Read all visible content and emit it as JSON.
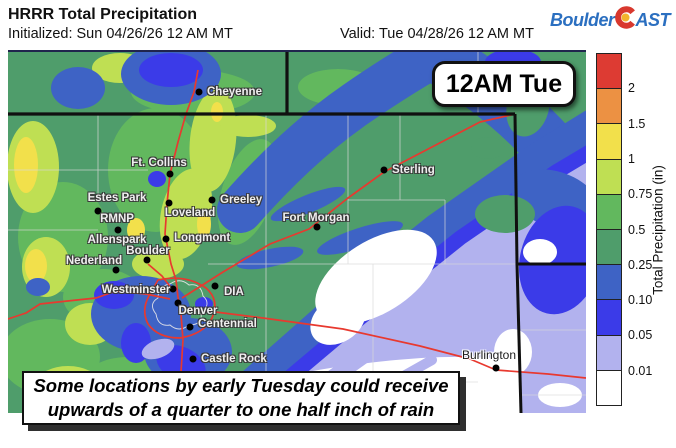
{
  "header": {
    "title": "HRRR Total Precipitation",
    "initialized": "Initialized: Sun 04/26/26 12 AM MT",
    "valid": "Valid: Tue 04/28/26 12 AM MT"
  },
  "logo": {
    "part1": "Boulder",
    "part2": "AST",
    "blue": "#2b6fc0",
    "c_red": "#d8382e",
    "c_yellow": "#f2b32d"
  },
  "overlay": {
    "time_label": "12AM Tue"
  },
  "caption": {
    "line1": "Some locations by early Tuesday could receive",
    "line2": "upwards of a quarter to one half inch of rain"
  },
  "colorbar": {
    "title": "Total Precipitation (in)",
    "tick_labels": [
      "2",
      "1.5",
      "1",
      "0.75",
      "0.5",
      "0.25",
      "0.10",
      "0.05",
      "0.01"
    ],
    "segment_colors": [
      "#DD3B33",
      "#EC9143",
      "#F2E04B",
      "#BFDF53",
      "#62B85E",
      "#4F9D6B",
      "#3E63C5",
      "#3B3BE8",
      "#B2B2EE",
      "#FFFFFF"
    ],
    "units": "in"
  },
  "map": {
    "road_color": "#E8392F",
    "border_color": "#101010",
    "cities": [
      {
        "name": "Cheyenne",
        "dot": [
          199,
          92
        ],
        "label": [
          207,
          92
        ],
        "anchor": "left",
        "theme": "light"
      },
      {
        "name": "Ft. Collins",
        "dot": [
          170,
          174
        ],
        "label": [
          159,
          163
        ],
        "anchor": "center",
        "theme": "light"
      },
      {
        "name": "Estes Park",
        "dot": [
          98,
          211
        ],
        "label": [
          117,
          198
        ],
        "anchor": "center",
        "theme": "light"
      },
      {
        "name": "RMNP",
        "dot": null,
        "label": [
          117,
          219
        ],
        "anchor": "center",
        "theme": "light"
      },
      {
        "name": "Allenspark",
        "dot": [
          118,
          230
        ],
        "label": [
          117,
          240
        ],
        "anchor": "center",
        "theme": "light"
      },
      {
        "name": "Greeley",
        "dot": [
          212,
          200
        ],
        "label": [
          220,
          200
        ],
        "anchor": "left",
        "theme": "light"
      },
      {
        "name": "Loveland",
        "dot": [
          169,
          203
        ],
        "label": [
          190,
          213
        ],
        "anchor": "center",
        "theme": "light"
      },
      {
        "name": "Fort Morgan",
        "dot": [
          317,
          227
        ],
        "label": [
          316,
          218
        ],
        "anchor": "center",
        "theme": "light"
      },
      {
        "name": "Sterling",
        "dot": [
          384,
          170
        ],
        "label": [
          392,
          170
        ],
        "anchor": "left",
        "theme": "light"
      },
      {
        "name": "Longmont",
        "dot": [
          166,
          239
        ],
        "label": [
          174,
          238
        ],
        "anchor": "left",
        "theme": "light"
      },
      {
        "name": "Boulder",
        "dot": [
          147,
          260
        ],
        "label": [
          148,
          251
        ],
        "anchor": "center",
        "theme": "light"
      },
      {
        "name": "Nederland",
        "dot": [
          116,
          270
        ],
        "label": [
          94,
          261
        ],
        "anchor": "center",
        "theme": "light"
      },
      {
        "name": "Westminster",
        "dot": [
          173,
          289
        ],
        "label": [
          136,
          290
        ],
        "anchor": "center",
        "theme": "light"
      },
      {
        "name": "DIA",
        "dot": [
          215,
          286
        ],
        "label": [
          224,
          292
        ],
        "anchor": "left",
        "theme": "light"
      },
      {
        "name": "Denver",
        "dot": [
          178,
          303
        ],
        "label": [
          198,
          311
        ],
        "anchor": "center",
        "theme": "light"
      },
      {
        "name": "Centennial",
        "dot": [
          190,
          327
        ],
        "label": [
          198,
          324
        ],
        "anchor": "left",
        "theme": "light"
      },
      {
        "name": "Castle Rock",
        "dot": [
          193,
          359
        ],
        "label": [
          201,
          359
        ],
        "anchor": "left",
        "theme": "light"
      },
      {
        "name": "Burlington",
        "dot": [
          496,
          368
        ],
        "label": [
          489,
          355
        ],
        "anchor": "center",
        "theme": "dark"
      }
    ]
  }
}
